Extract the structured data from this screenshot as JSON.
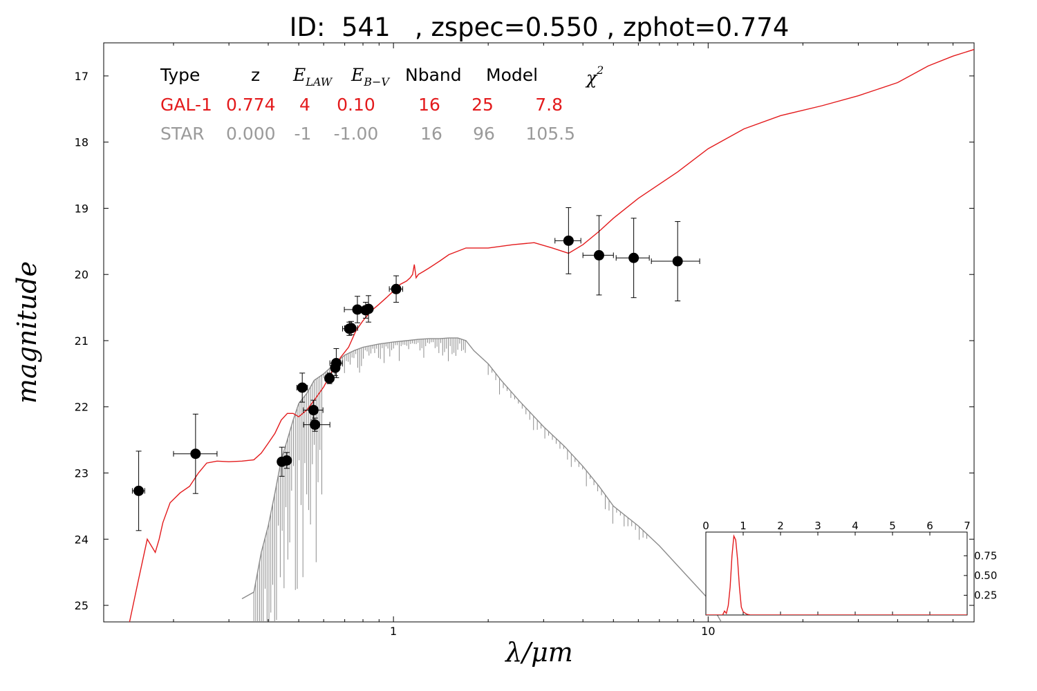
{
  "chart_data": [
    {
      "type": "scatter",
      "title": "ID:  541   , zspec=0.550 , zphot=0.774",
      "xlabel": "λ/μm",
      "ylabel": "magnitude",
      "xscale": "log",
      "yaxis_inverted": true,
      "xlim": [
        0.12,
        70
      ],
      "ylim": [
        25.25,
        16.5
      ],
      "xticks": [
        {
          "value": 1,
          "label": "1"
        },
        {
          "value": 10,
          "label": "10"
        }
      ],
      "yticks": [
        {
          "value": 17,
          "label": "17"
        },
        {
          "value": 18,
          "label": "18"
        },
        {
          "value": 19,
          "label": "19"
        },
        {
          "value": 20,
          "label": "20"
        },
        {
          "value": 21,
          "label": "21"
        },
        {
          "value": 22,
          "label": "22"
        },
        {
          "value": 23,
          "label": "23"
        },
        {
          "value": 24,
          "label": "24"
        },
        {
          "value": 25,
          "label": "25"
        }
      ],
      "grid": false,
      "observations": [
        {
          "x": 0.155,
          "y": 23.27,
          "xerr_lo": 0.007,
          "xerr_hi": 0.007,
          "yerr": 0.6
        },
        {
          "x": 0.235,
          "y": 22.71,
          "xerr_lo": 0.035,
          "xerr_hi": 0.04,
          "yerr": 0.6
        },
        {
          "x": 0.442,
          "y": 22.83,
          "xerr_lo": 0.012,
          "xerr_hi": 0.012,
          "yerr": 0.22
        },
        {
          "x": 0.458,
          "y": 22.81,
          "xerr_lo": 0.012,
          "xerr_hi": 0.012,
          "yerr": 0.12
        },
        {
          "x": 0.513,
          "y": 21.71,
          "xerr_lo": 0.02,
          "xerr_hi": 0.02,
          "yerr": 0.22
        },
        {
          "x": 0.557,
          "y": 22.05,
          "xerr_lo": 0.04,
          "xerr_hi": 0.04,
          "yerr": 0.15
        },
        {
          "x": 0.563,
          "y": 22.27,
          "xerr_lo": 0.045,
          "xerr_hi": 0.065,
          "yerr": 0.1
        },
        {
          "x": 0.626,
          "y": 21.57,
          "xerr_lo": 0.02,
          "xerr_hi": 0.02,
          "yerr": 0.08
        },
        {
          "x": 0.653,
          "y": 21.41,
          "xerr_lo": 0.02,
          "xerr_hi": 0.02,
          "yerr": 0.12
        },
        {
          "x": 0.658,
          "y": 21.34,
          "xerr_lo": 0.03,
          "xerr_hi": 0.03,
          "yerr": 0.22
        },
        {
          "x": 0.724,
          "y": 20.82,
          "xerr_lo": 0.035,
          "xerr_hi": 0.035,
          "yerr": 0.1
        },
        {
          "x": 0.734,
          "y": 20.81,
          "xerr_lo": 0.035,
          "xerr_hi": 0.035,
          "yerr": 0.1
        },
        {
          "x": 0.768,
          "y": 20.53,
          "xerr_lo": 0.07,
          "xerr_hi": 0.07,
          "yerr": 0.2
        },
        {
          "x": 0.816,
          "y": 20.54,
          "xerr_lo": 0.02,
          "xerr_hi": 0.02,
          "yerr": 0.12
        },
        {
          "x": 0.833,
          "y": 20.52,
          "xerr_lo": 0.02,
          "xerr_hi": 0.02,
          "yerr": 0.2
        },
        {
          "x": 1.02,
          "y": 20.22,
          "xerr_lo": 0.05,
          "xerr_hi": 0.05,
          "yerr": 0.2
        },
        {
          "x": 3.6,
          "y": 19.49,
          "xerr_lo": 0.34,
          "xerr_hi": 0.34,
          "yerr": 0.5
        },
        {
          "x": 4.5,
          "y": 19.71,
          "xerr_lo": 0.5,
          "xerr_hi": 0.5,
          "yerr": 0.6
        },
        {
          "x": 5.8,
          "y": 19.75,
          "xerr_lo": 0.7,
          "xerr_hi": 0.7,
          "yerr": 0.6
        },
        {
          "x": 8.0,
          "y": 19.8,
          "xerr_lo": 1.4,
          "xerr_hi": 1.4,
          "yerr": 0.6
        }
      ],
      "galaxy_model": {
        "color": "#e31a1c",
        "x": [
          0.145,
          0.155,
          0.165,
          0.175,
          0.18,
          0.185,
          0.195,
          0.21,
          0.225,
          0.24,
          0.255,
          0.275,
          0.3,
          0.33,
          0.36,
          0.38,
          0.4,
          0.42,
          0.44,
          0.46,
          0.48,
          0.5,
          0.53,
          0.56,
          0.6,
          0.64,
          0.68,
          0.72,
          0.76,
          0.8,
          0.85,
          0.9,
          0.95,
          1.0,
          1.05,
          1.1,
          1.13,
          1.15,
          1.165,
          1.18,
          1.2,
          1.25,
          1.3,
          1.4,
          1.5,
          1.7,
          2.0,
          2.4,
          2.8,
          3.2,
          3.6,
          4.0,
          4.5,
          5.0,
          6.0,
          8.0,
          10.0,
          13.0,
          17.0,
          23.0,
          30.0,
          40.0,
          50.0,
          60.0,
          70.0
        ],
        "y": [
          25.25,
          24.6,
          24.0,
          24.2,
          24.0,
          23.75,
          23.45,
          23.3,
          23.2,
          23.0,
          22.85,
          22.82,
          22.83,
          22.82,
          22.8,
          22.7,
          22.55,
          22.4,
          22.2,
          22.1,
          22.1,
          22.15,
          22.05,
          21.9,
          21.7,
          21.45,
          21.25,
          21.1,
          20.85,
          20.7,
          20.55,
          20.45,
          20.35,
          20.25,
          20.15,
          20.1,
          20.05,
          20.0,
          19.85,
          20.05,
          20.0,
          19.95,
          19.9,
          19.8,
          19.7,
          19.6,
          19.6,
          19.55,
          19.52,
          19.6,
          19.68,
          19.55,
          19.35,
          19.15,
          18.85,
          18.45,
          18.1,
          17.8,
          17.6,
          17.45,
          17.3,
          17.1,
          16.85,
          16.7,
          16.6
        ]
      },
      "star_model": {
        "color": "#8c8c8c",
        "x": [
          0.33,
          0.36,
          0.38,
          0.4,
          0.42,
          0.44,
          0.46,
          0.48,
          0.5,
          0.53,
          0.56,
          0.6,
          0.65,
          0.7,
          0.75,
          0.8,
          0.9,
          1.0,
          1.1,
          1.2,
          1.3,
          1.4,
          1.5,
          1.6,
          1.7,
          1.8,
          2.0,
          2.2,
          2.5,
          3.0,
          3.5,
          4.0,
          4.5,
          5.0,
          6.0,
          7.0,
          8.0,
          10.0,
          11.0
        ],
        "y": [
          24.9,
          24.8,
          24.2,
          23.8,
          23.3,
          22.8,
          22.5,
          22.2,
          21.95,
          21.8,
          21.6,
          21.5,
          21.35,
          21.22,
          21.15,
          21.1,
          21.05,
          21.02,
          21.0,
          20.98,
          20.97,
          20.97,
          20.96,
          20.96,
          21.0,
          21.15,
          21.35,
          21.6,
          21.9,
          22.3,
          22.6,
          22.9,
          23.2,
          23.5,
          23.8,
          24.1,
          24.4,
          24.9,
          25.25
        ]
      }
    },
    {
      "type": "line",
      "name": "redshift-pdf-inset",
      "xlim": [
        0,
        7
      ],
      "ylim": [
        0,
        1.05
      ],
      "xticks": [
        {
          "value": 0,
          "label": "0"
        },
        {
          "value": 1,
          "label": "1"
        },
        {
          "value": 2,
          "label": "2"
        },
        {
          "value": 3,
          "label": "3"
        },
        {
          "value": 4,
          "label": "4"
        },
        {
          "value": 5,
          "label": "5"
        },
        {
          "value": 6,
          "label": "6"
        },
        {
          "value": 7,
          "label": "7"
        }
      ],
      "yticks": [
        {
          "value": 0.25,
          "label": "0.25"
        },
        {
          "value": 0.5,
          "label": "0.50"
        },
        {
          "value": 0.75,
          "label": "0.75"
        }
      ],
      "color": "#e31a1c",
      "x": [
        0,
        0.45,
        0.5,
        0.55,
        0.6,
        0.65,
        0.7,
        0.75,
        0.8,
        0.85,
        0.9,
        0.95,
        1.0,
        1.1,
        1.2,
        1.5,
        2.0,
        7.0
      ],
      "y": [
        0,
        0,
        0.05,
        0.02,
        0.12,
        0.35,
        0.75,
        1.0,
        0.95,
        0.7,
        0.35,
        0.1,
        0.04,
        0.01,
        0,
        0,
        0,
        0
      ]
    }
  ],
  "fit_table": {
    "header": {
      "type": "Type",
      "z": "z",
      "elaw_base": "E",
      "elaw_sub": "LAW",
      "ebv_base": "E",
      "ebv_sub": "B−V",
      "nband": "Nband",
      "model": "Model",
      "chi_base": "χ",
      "chi_sup": "2"
    },
    "rows": [
      {
        "color": "#e31a1c",
        "type": "GAL-1",
        "z": "0.774",
        "elaw": "4",
        "ebv": "0.10",
        "nband": "16",
        "model": "25",
        "chi2": "7.8"
      },
      {
        "color": "#9a9a9a",
        "type": "STAR",
        "z": "0.000",
        "elaw": "-1",
        "ebv": "-1.00",
        "nband": "16",
        "model": "96",
        "chi2": "105.5"
      }
    ]
  }
}
